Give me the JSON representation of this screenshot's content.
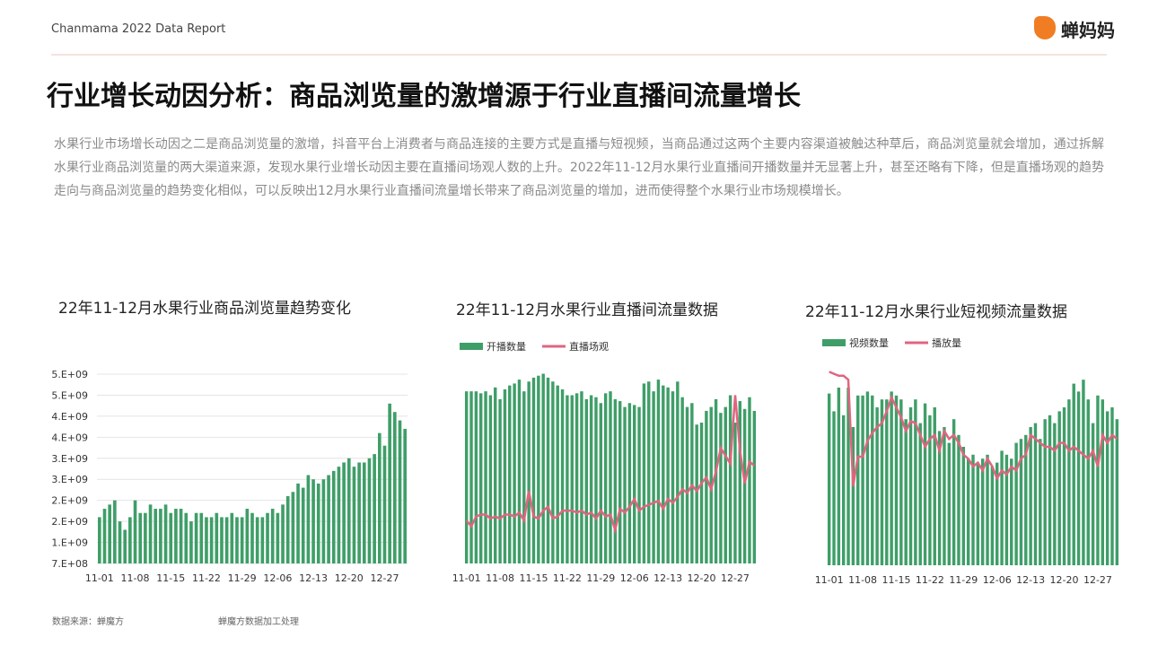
{
  "header": {
    "report": "Chanmama 2022 Data Report",
    "logo": "蝉妈妈"
  },
  "title": "行业增长动因分析：商品浏览量的激增源于行业直播间流量增长",
  "paragraph": "水果行业市场增长动因之二是商品浏览量的激增，抖音平台上消费者与商品连接的主要方式是直播与短视频，当商品通过这两个主要内容渠道被触达种草后，商品浏览量就会增加，通过拆解水果行业商品浏览量的两大渠道来源，发现水果行业增长动因主要在直播间场观人数的上升。2022年11-12月水果行业直播间开播数量并无显著上升，甚至还略有下降，但是直播场观的趋势走向与商品浏览量的趋势变化相似，可以反映出12月水果行业直播间流量增长带来了商品浏览量的增加，进而使得整个水果行业市场规模增长。",
  "footer": {
    "source": "数据来源：蝉魔方",
    "note": "蝉魔方数据加工处理"
  },
  "chart_data": [
    {
      "type": "bar",
      "title": "22年11-12月水果行业商品浏览量趋势变化",
      "color": "#3f9e68",
      "categories": [
        "11-01",
        null,
        null,
        null,
        null,
        null,
        null,
        "11-08",
        null,
        null,
        null,
        null,
        null,
        null,
        "11-15",
        null,
        null,
        null,
        null,
        null,
        null,
        "11-22",
        null,
        null,
        null,
        null,
        null,
        null,
        "11-29",
        null,
        null,
        null,
        null,
        null,
        null,
        "12-06",
        null,
        null,
        null,
        null,
        null,
        null,
        "12-13",
        null,
        null,
        null,
        null,
        null,
        null,
        "12-20",
        null,
        null,
        null,
        null,
        null,
        null,
        "12-27",
        null,
        null,
        null,
        null
      ],
      "values": [
        1800000000.0,
        2000000000.0,
        2100000000.0,
        2200000000.0,
        1700000000.0,
        1500000000.0,
        1800000000.0,
        2200000000.0,
        1900000000.0,
        1900000000.0,
        2100000000.0,
        2000000000.0,
        2000000000.0,
        2100000000.0,
        1900000000.0,
        2000000000.0,
        2000000000.0,
        1900000000.0,
        1700000000.0,
        1900000000.0,
        1900000000.0,
        1800000000.0,
        1800000000.0,
        1900000000.0,
        1800000000.0,
        1800000000.0,
        1900000000.0,
        1800000000.0,
        1800000000.0,
        2000000000.0,
        1900000000.0,
        1800000000.0,
        1800000000.0,
        1900000000.0,
        2000000000.0,
        1900000000.0,
        2100000000.0,
        2300000000.0,
        2400000000.0,
        2600000000.0,
        2500000000.0,
        2800000000.0,
        2700000000.0,
        2600000000.0,
        2700000000.0,
        2800000000.0,
        2900000000.0,
        3000000000.0,
        3100000000.0,
        3200000000.0,
        3000000000.0,
        3100000000.0,
        3100000000.0,
        3200000000.0,
        3300000000.0,
        3800000000.0,
        3500000000.0,
        4500000000.0,
        4300000000.0,
        4100000000.0,
        3900000000.0
      ],
      "ylim": [
        700000000.0,
        5200000000.0
      ],
      "yticks": [
        {
          "value": 700000000.0,
          "label": "7.E+08"
        },
        {
          "value": 1200000000.0,
          "label": "1.E+09"
        },
        {
          "value": 1700000000.0,
          "label": "2.E+09"
        },
        {
          "value": 2200000000.0,
          "label": "2.E+09"
        },
        {
          "value": 2700000000.0,
          "label": "3.E+09"
        },
        {
          "value": 3200000000.0,
          "label": "3.E+09"
        },
        {
          "value": 3700000000.0,
          "label": "4.E+09"
        },
        {
          "value": 4200000000.0,
          "label": "4.E+09"
        },
        {
          "value": 4700000000.0,
          "label": "5.E+09"
        },
        {
          "value": 5200000000.0,
          "label": "5.E+09"
        }
      ],
      "grid": true
    },
    {
      "type": "bar-line",
      "title": "22年11-12月水果行业直播间流量数据",
      "categories": [
        "11-01",
        null,
        null,
        null,
        null,
        null,
        null,
        "11-08",
        null,
        null,
        null,
        null,
        null,
        null,
        "11-15",
        null,
        null,
        null,
        null,
        null,
        null,
        "11-22",
        null,
        null,
        null,
        null,
        null,
        null,
        "11-29",
        null,
        null,
        null,
        null,
        null,
        null,
        "12-06",
        null,
        null,
        null,
        null,
        null,
        null,
        "12-13",
        null,
        null,
        null,
        null,
        null,
        null,
        "12-20",
        null,
        null,
        null,
        null,
        null,
        null,
        "12-27",
        null,
        null,
        null,
        null
      ],
      "ylim": [
        0,
        100
      ],
      "y2lim": [
        0,
        100
      ],
      "series": [
        {
          "name": "开播数量",
          "color": "#3f9e68",
          "type": "bar",
          "values": [
            88,
            88,
            88,
            87,
            88,
            86,
            90,
            84,
            89,
            91,
            92,
            94,
            88,
            93,
            95,
            96,
            97,
            95,
            93,
            91,
            89,
            86,
            86,
            87,
            88,
            84,
            86,
            85,
            82,
            87,
            88,
            84,
            83,
            80,
            82,
            81,
            80,
            92,
            93,
            88,
            94,
            91,
            90,
            88,
            93,
            85,
            80,
            82,
            71,
            72,
            78,
            80,
            84,
            77,
            80,
            86,
            72,
            83,
            79,
            85,
            78
          ]
        },
        {
          "name": "直播场观",
          "color": "#e06580",
          "type": "line",
          "axis": "y2",
          "values": [
            22,
            19,
            24,
            25,
            25,
            23,
            24,
            23,
            25,
            25,
            24,
            26,
            22,
            37,
            24,
            23,
            27,
            29,
            23,
            24,
            27,
            27,
            27,
            26,
            27,
            25,
            26,
            23,
            27,
            24,
            25,
            17,
            28,
            26,
            29,
            33,
            27,
            29,
            30,
            31,
            32,
            28,
            33,
            31,
            34,
            38,
            36,
            40,
            37,
            41,
            44,
            38,
            47,
            59,
            55,
            51,
            86,
            58,
            41,
            52,
            50
          ]
        }
      ]
    },
    {
      "type": "bar-line",
      "title": "22年11-12月水果行业短视频流量数据",
      "categories": [
        "11-01",
        null,
        null,
        null,
        null,
        null,
        null,
        "11-08",
        null,
        null,
        null,
        null,
        null,
        null,
        "11-15",
        null,
        null,
        null,
        null,
        null,
        null,
        "11-22",
        null,
        null,
        null,
        null,
        null,
        null,
        "11-29",
        null,
        null,
        null,
        null,
        null,
        null,
        "12-06",
        null,
        null,
        null,
        null,
        null,
        null,
        "12-13",
        null,
        null,
        null,
        null,
        null,
        null,
        "12-20",
        null,
        null,
        null,
        null,
        null,
        null,
        "12-27",
        null,
        null,
        null,
        null
      ],
      "ylim": [
        0,
        100
      ],
      "y2lim": [
        0,
        100
      ],
      "series": [
        {
          "name": "视频数量",
          "color": "#3f9e68",
          "type": "bar",
          "values": [
            87,
            78,
            90,
            76,
            90,
            70,
            86,
            86,
            88,
            86,
            80,
            84,
            84,
            88,
            86,
            84,
            74,
            80,
            84,
            72,
            82,
            76,
            80,
            68,
            70,
            62,
            74,
            66,
            60,
            54,
            56,
            52,
            54,
            56,
            50,
            52,
            58,
            56,
            54,
            62,
            64,
            66,
            70,
            72,
            64,
            74,
            76,
            72,
            78,
            80,
            84,
            92,
            88,
            94,
            84,
            72,
            86,
            84,
            78,
            80,
            74
          ]
        },
        {
          "name": "播放量",
          "color": "#e06580",
          "type": "line",
          "axis": "y2",
          "values": [
            98,
            97,
            96,
            96,
            94,
            40,
            55,
            55,
            63,
            67,
            70,
            72,
            78,
            85,
            80,
            75,
            68,
            73,
            72,
            66,
            60,
            64,
            66,
            58,
            68,
            64,
            66,
            62,
            56,
            54,
            50,
            52,
            48,
            54,
            50,
            44,
            48,
            46,
            50,
            48,
            54,
            56,
            66,
            64,
            62,
            60,
            60,
            58,
            62,
            62,
            58,
            60,
            58,
            56,
            54,
            58,
            50,
            66,
            62,
            66,
            64
          ]
        }
      ]
    }
  ]
}
